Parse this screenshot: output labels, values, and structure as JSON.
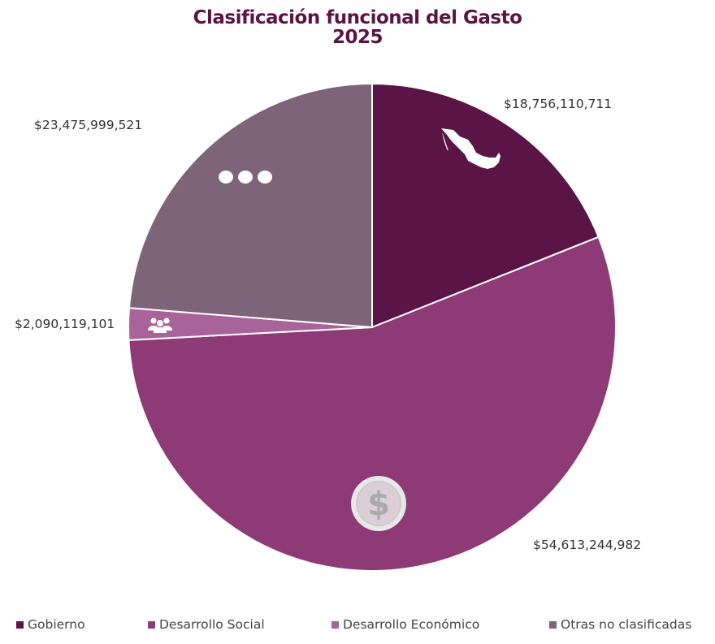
{
  "chart_data": {
    "type": "pie",
    "title": "Clasificación funcional del Gasto",
    "subtitle": "2025",
    "categories": [
      "Gobierno",
      "Desarrollo Social",
      "Desarrollo Económico",
      "Otras no clasificadas"
    ],
    "values": [
      18756110711,
      54613244982,
      2090119101,
      23475999521
    ],
    "labels": [
      "$18,756,110,711",
      "$54,613,244,982",
      "$2,090,119,101",
      "$23,475,999,521"
    ],
    "colors": [
      "#5a1446",
      "#8e3a76",
      "#a8649a",
      "#7e6479"
    ],
    "icons": [
      "mexico-map-icon",
      "dollar-coin-icon",
      "people-group-icon",
      "ellipsis-icon"
    ],
    "legend_position": "bottom"
  }
}
